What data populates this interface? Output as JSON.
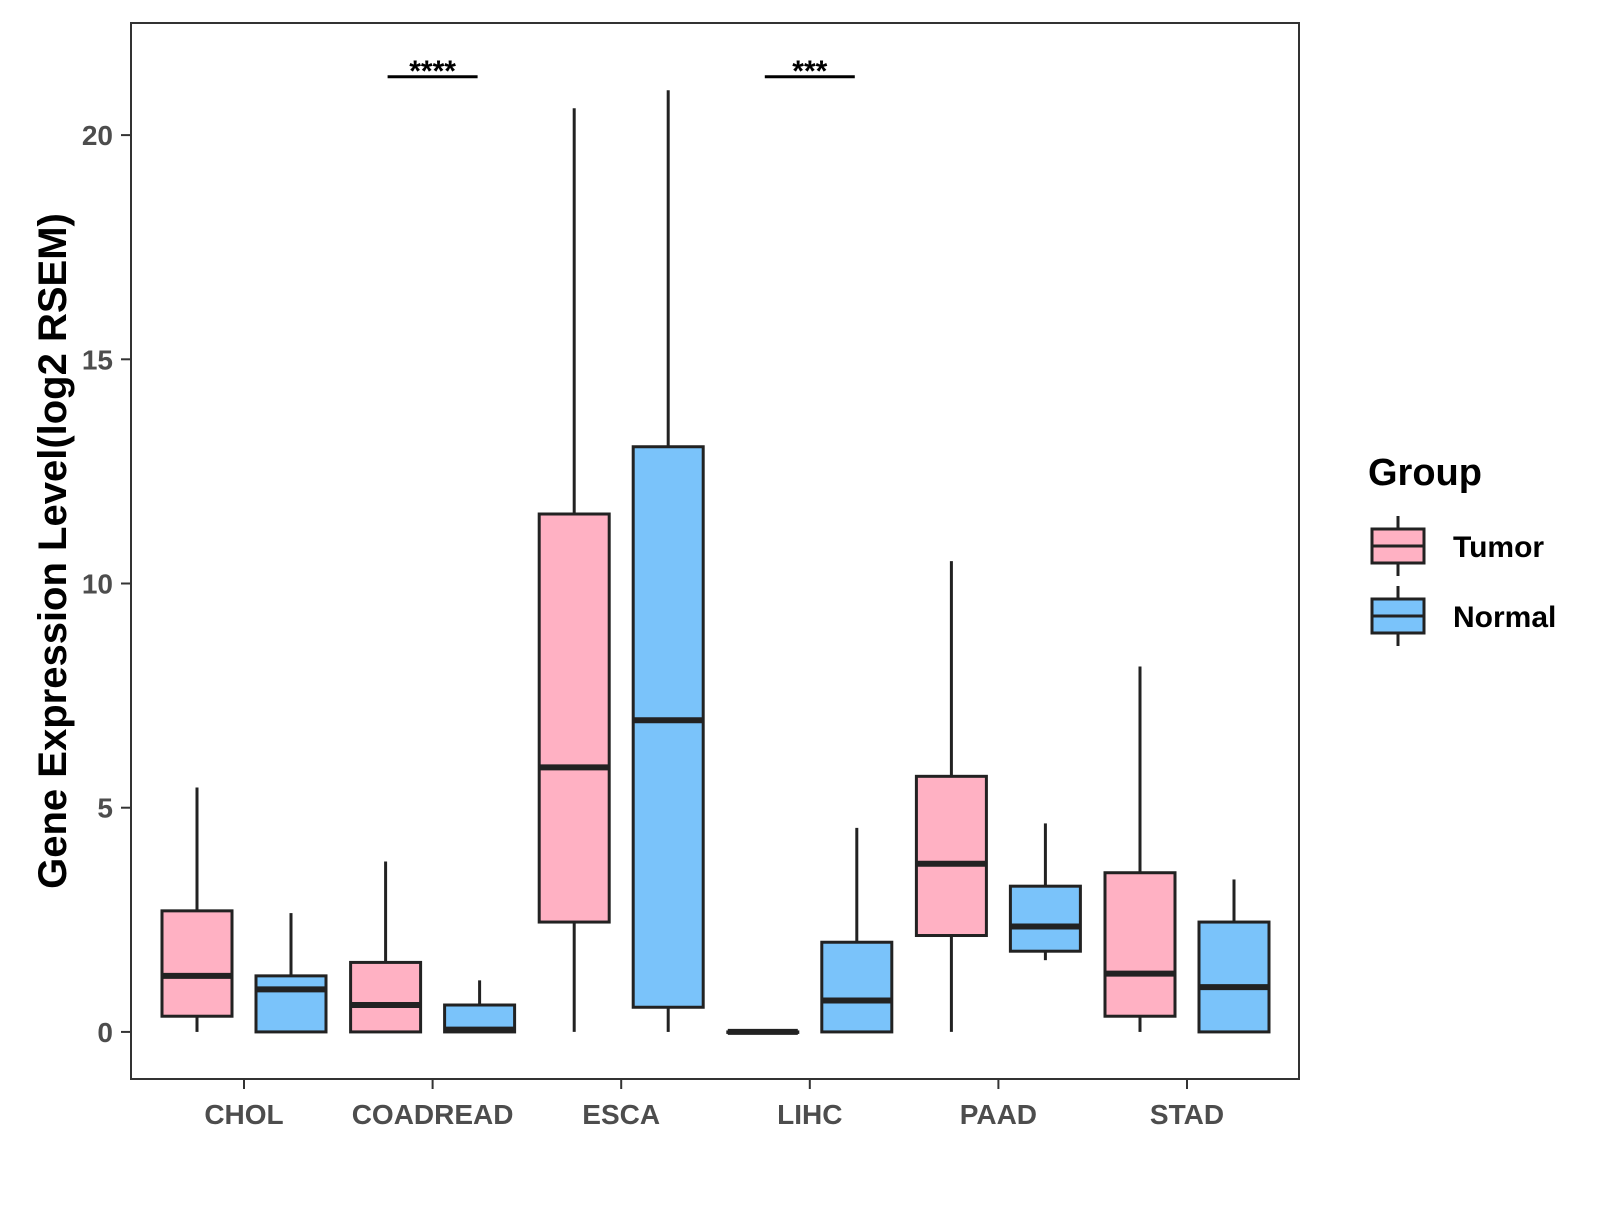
{
  "chart_data": {
    "type": "boxplot",
    "title": "",
    "xlabel": "",
    "ylabel": "Gene Expression Level(log2 RSEM)",
    "ylim": [
      -1.05,
      22.5
    ],
    "yticks": [
      0,
      5,
      10,
      15,
      20
    ],
    "grid": false,
    "legend_position": "right",
    "legend_title": "Group",
    "categories": [
      "CHOL",
      "COADREAD",
      "ESCA",
      "LIHC",
      "PAAD",
      "STAD"
    ],
    "series": [
      {
        "name": "Tumor",
        "color": "#FFB1C3",
        "boxes": [
          {
            "category": "CHOL",
            "whisker_low": 0.0,
            "q1": 0.35,
            "median": 1.25,
            "q3": 2.7,
            "whisker_high": 5.45
          },
          {
            "category": "COADREAD",
            "whisker_low": 0.0,
            "q1": 0.0,
            "median": 0.6,
            "q3": 1.55,
            "whisker_high": 3.8
          },
          {
            "category": "ESCA",
            "whisker_low": 0.0,
            "q1": 2.45,
            "median": 5.9,
            "q3": 11.55,
            "whisker_high": 20.6
          },
          {
            "category": "LIHC",
            "whisker_low": 0.0,
            "q1": 0.0,
            "median": 0.0,
            "q3": 0.0,
            "whisker_high": 0.0
          },
          {
            "category": "PAAD",
            "whisker_low": 0.0,
            "q1": 2.15,
            "median": 3.75,
            "q3": 5.7,
            "whisker_high": 10.5
          },
          {
            "category": "STAD",
            "whisker_low": 0.0,
            "q1": 0.35,
            "median": 1.3,
            "q3": 3.55,
            "whisker_high": 8.15
          }
        ]
      },
      {
        "name": "Normal",
        "color": "#7AC3FA",
        "boxes": [
          {
            "category": "CHOL",
            "whisker_low": 0.0,
            "q1": 0.0,
            "median": 0.95,
            "q3": 1.25,
            "whisker_high": 2.65
          },
          {
            "category": "COADREAD",
            "whisker_low": 0.0,
            "q1": 0.0,
            "median": 0.05,
            "q3": 0.6,
            "whisker_high": 1.15
          },
          {
            "category": "ESCA",
            "whisker_low": 0.0,
            "q1": 0.55,
            "median": 6.95,
            "q3": 13.05,
            "whisker_high": 21.0
          },
          {
            "category": "LIHC",
            "whisker_low": 0.0,
            "q1": 0.0,
            "median": 0.7,
            "q3": 2.0,
            "whisker_high": 4.55
          },
          {
            "category": "PAAD",
            "whisker_low": 1.6,
            "q1": 1.8,
            "median": 2.35,
            "q3": 3.25,
            "whisker_high": 4.65
          },
          {
            "category": "STAD",
            "whisker_low": 0.0,
            "q1": 0.0,
            "median": 1.0,
            "q3": 2.45,
            "whisker_high": 3.4
          }
        ]
      }
    ],
    "annotations": [
      {
        "category": "COADREAD",
        "label": "****",
        "y": 21.3
      },
      {
        "category": "LIHC",
        "label": "***",
        "y": 21.3
      }
    ]
  }
}
